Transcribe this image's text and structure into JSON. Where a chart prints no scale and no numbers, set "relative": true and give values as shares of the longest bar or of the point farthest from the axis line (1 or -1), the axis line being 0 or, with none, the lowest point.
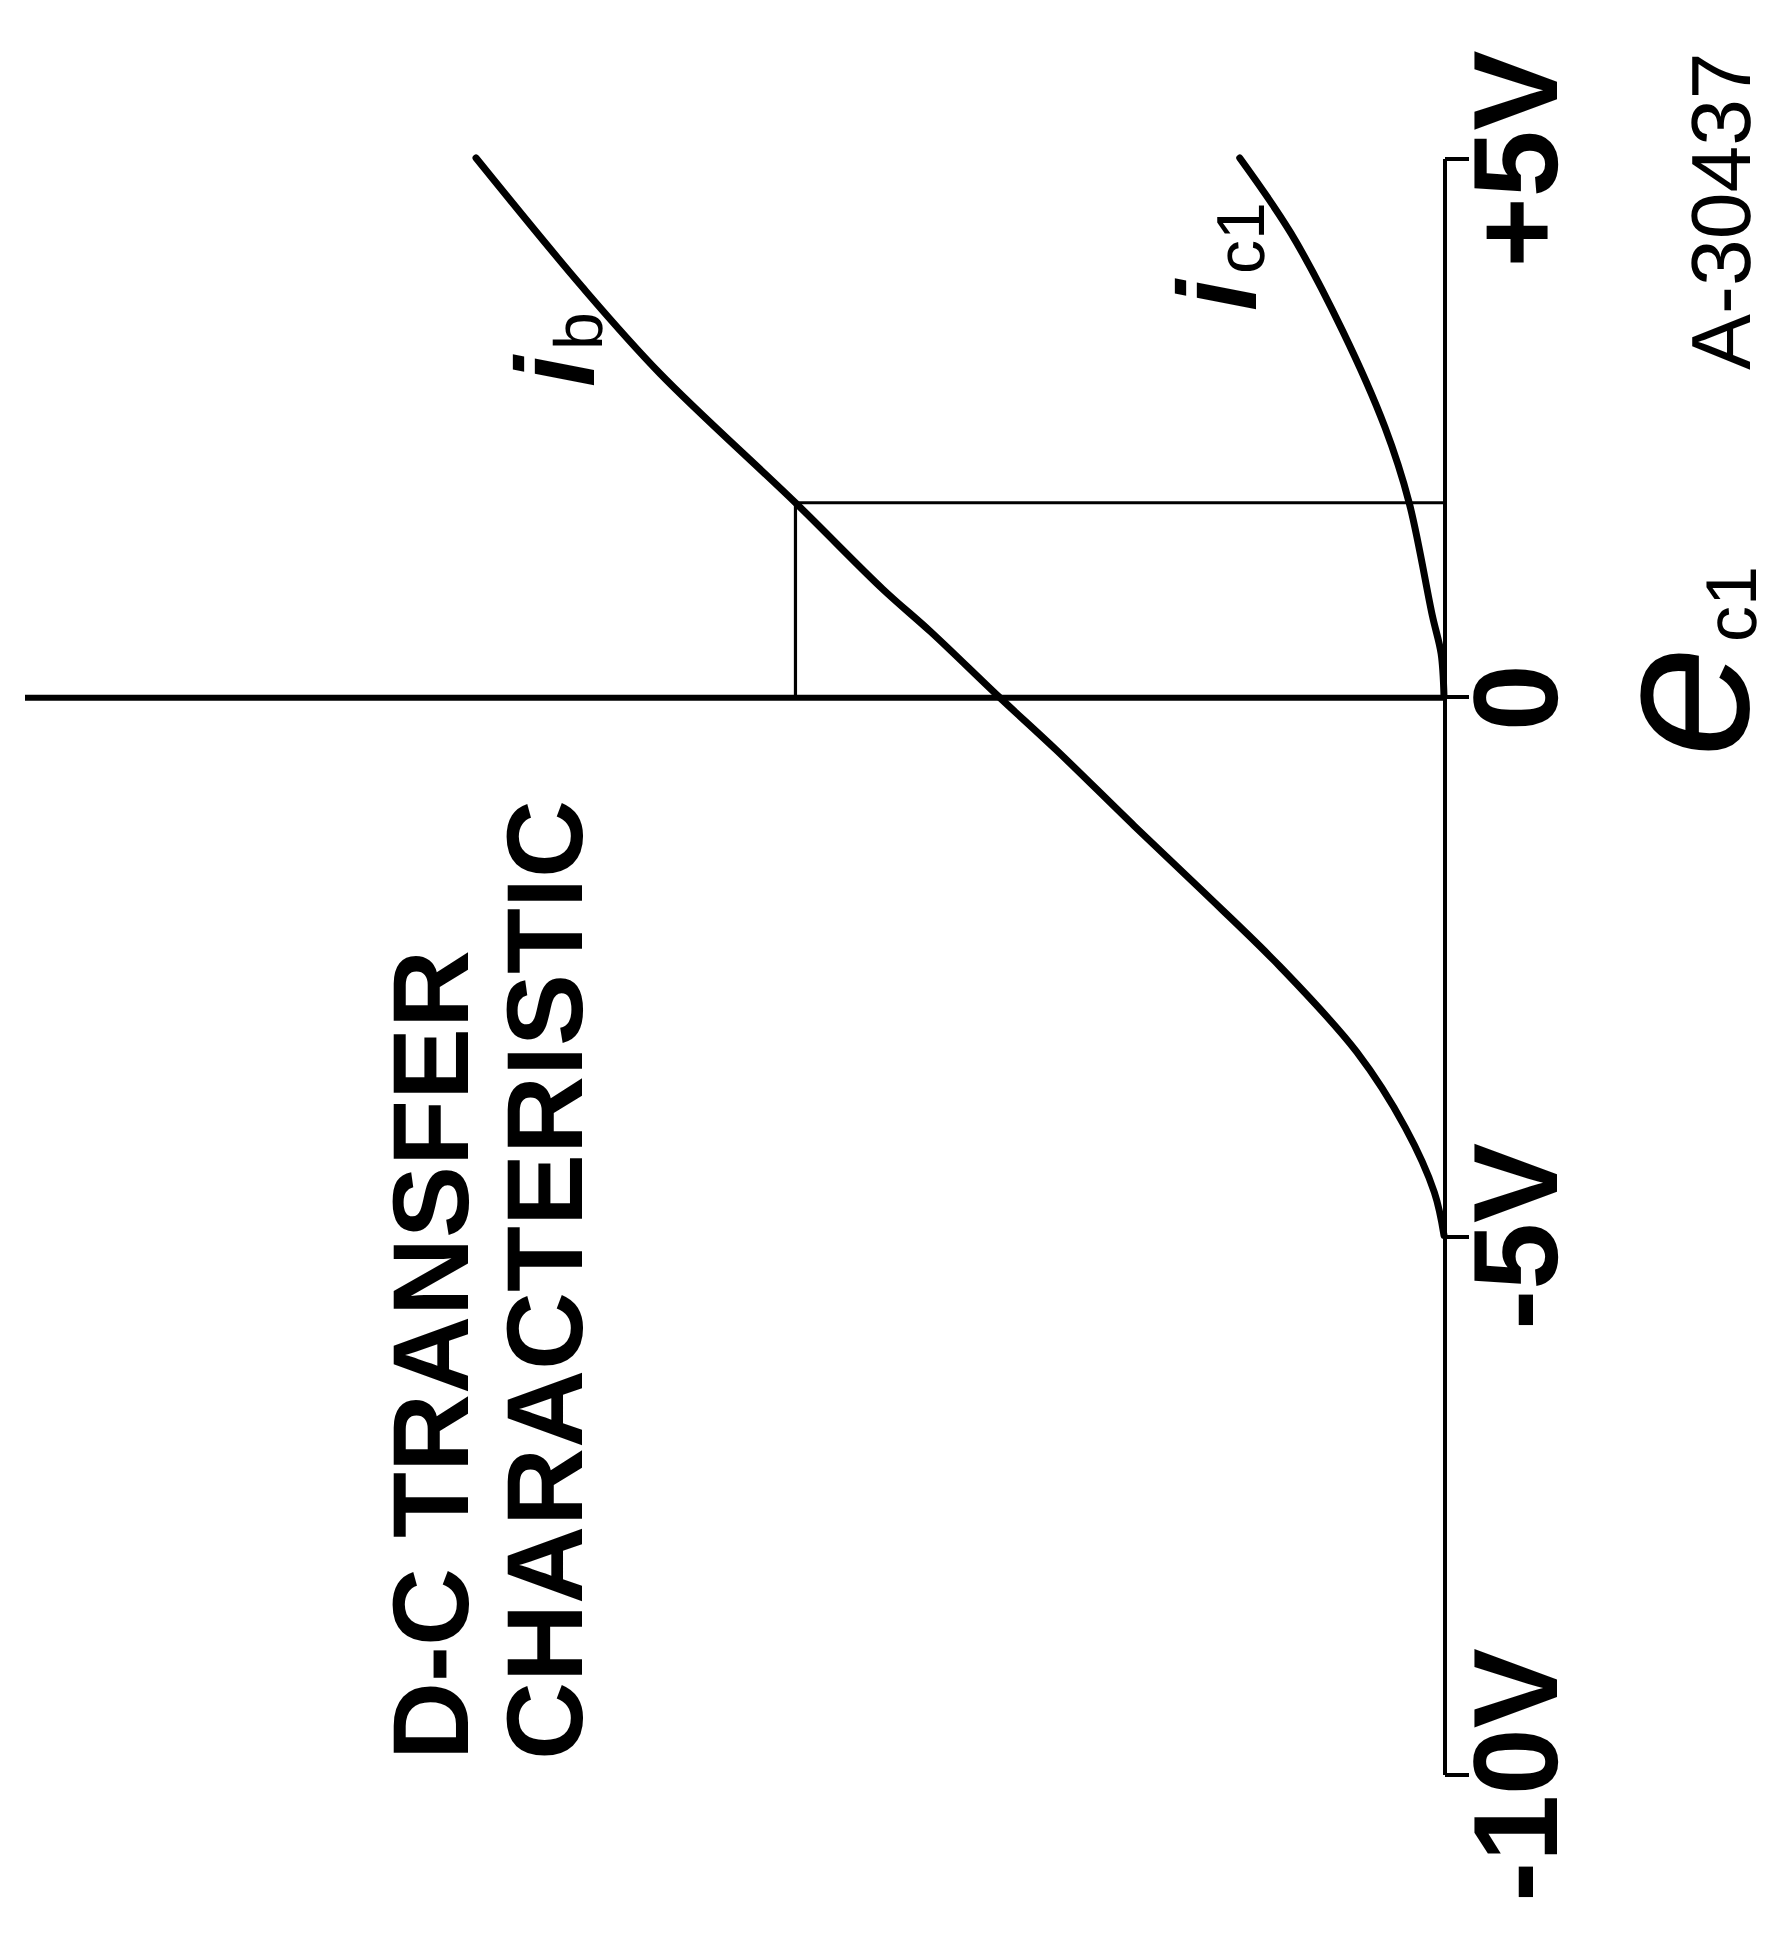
{
  "chart_data": {
    "type": "line",
    "orientation": "horizontal",
    "title": "D-C TRANSFER CHARACTERISTIC",
    "ylabel": "e$_{c1}$",
    "relative": true,
    "ylim": [
      -10,
      5
    ],
    "yticks": [
      {
        "value": -10,
        "label": "-10V"
      },
      {
        "value": -5,
        "label": "-5V"
      },
      0,
      {
        "value": 5,
        "label": "+5V"
      }
    ],
    "series": [
      {
        "name": "i$_{b}$",
        "color": "#000000",
        "x": [
          -5,
          -4.6,
          -4,
          -3.3,
          -2.5,
          -1.8,
          -1.2,
          -0.5,
          0,
          0.6,
          1,
          1.8,
          3,
          3.8,
          5
        ],
        "values": [
          0,
          -0.01,
          -0.04,
          -0.09,
          -0.17,
          -0.25,
          -0.32,
          -0.4,
          -0.46,
          -0.53,
          -0.58,
          -0.67,
          -0.81,
          -0.89,
          -1
        ]
      },
      {
        "name": "i$_{c1}$",
        "color": "#000000",
        "x": [
          0,
          0.4,
          0.75,
          1.8,
          2.5,
          3.4,
          4.3,
          5
        ],
        "values": [
          0,
          -0.003,
          -0.012,
          -0.036,
          -0.061,
          -0.105,
          -0.158,
          -0.211
        ]
      },
      {
        "color": "#000000",
        "x": [
          0,
          1.8,
          1.8
        ],
        "values": [
          -0.67,
          -0.67,
          0
        ]
      }
    ],
    "annotations": [
      "A-30437"
    ]
  }
}
